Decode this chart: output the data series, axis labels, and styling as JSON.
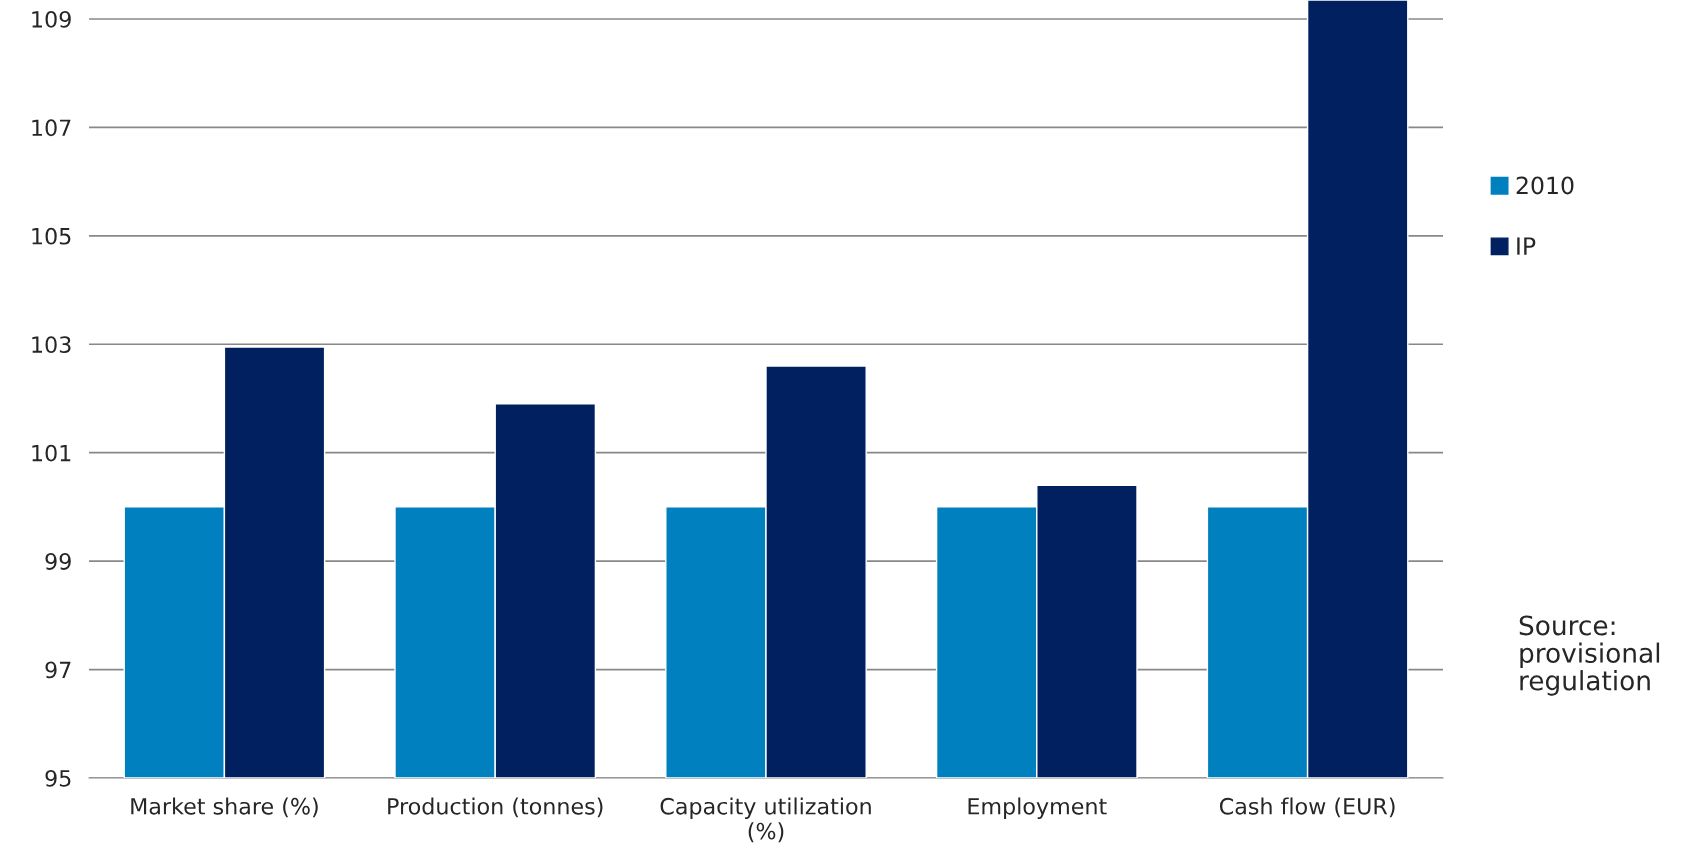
{
  "chart_data": {
    "type": "bar",
    "categories": [
      "Market share (%)",
      "Production (tonnes)",
      "Capacity utilization (%)",
      "Employment",
      "Cash flow (EUR)"
    ],
    "series": [
      {
        "name": "2010",
        "color": "#0080be",
        "values": [
          100,
          100,
          100,
          100,
          100
        ]
      },
      {
        "name": "IP",
        "color": "#002060",
        "values": [
          102.95,
          101.9,
          102.6,
          100.4,
          109.35
        ]
      }
    ],
    "ylim": [
      95,
      109.35
    ],
    "yticks": [
      95,
      97,
      99,
      101,
      103,
      105,
      107,
      109
    ],
    "grid": "y",
    "legend": "right",
    "annotations": [
      "Source: provisional regulation"
    ]
  }
}
